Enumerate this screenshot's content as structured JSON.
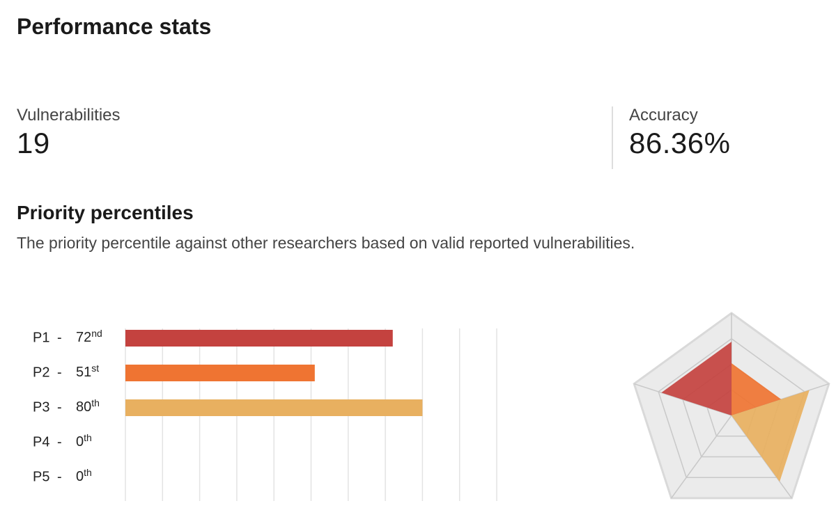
{
  "header": {
    "title": "Performance stats"
  },
  "stats": [
    {
      "label": "Vulnerabilities",
      "value": "19"
    },
    {
      "label": "Accuracy",
      "value": "86.36%"
    }
  ],
  "section": {
    "title": "Priority percentiles",
    "description": "The priority percentile against other researchers based on valid reported vulnerabilities."
  },
  "chart_data": [
    {
      "type": "bar",
      "orientation": "horizontal",
      "categories": [
        "P1",
        "P2",
        "P3",
        "P4",
        "P5"
      ],
      "separator": "-",
      "values": [
        72,
        51,
        80,
        0,
        0
      ],
      "value_labels": [
        "72nd",
        "51st",
        "80th",
        "0th",
        "0th"
      ],
      "colors": [
        "#c4423f",
        "#ef7432",
        "#e8b060",
        "#e8b060",
        "#e8b060"
      ],
      "xlim": [
        0,
        100
      ],
      "xticks": [
        0,
        10,
        20,
        30,
        40,
        50,
        60,
        70,
        80,
        90,
        100
      ],
      "grid": true
    },
    {
      "type": "radar",
      "values": [
        72,
        51,
        80,
        0,
        0
      ],
      "colors": [
        "#c4423f",
        "#ef7432",
        "#e8b060",
        "#e8b060",
        "#e8b060"
      ],
      "rlim": [
        0,
        100
      ],
      "rticks": [
        25,
        50,
        75,
        100
      ]
    }
  ]
}
